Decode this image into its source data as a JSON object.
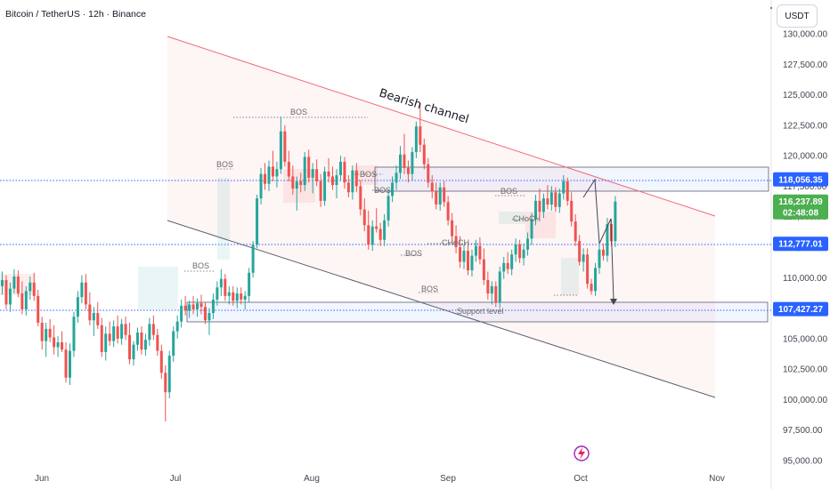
{
  "header": {
    "title": "Bitcoin / TetherUS · 12h · Binance"
  },
  "currency_button": {
    "label": "USDT"
  },
  "colors": {
    "up": "#26a69a",
    "down": "#ef5350",
    "channel_upper": "#f06a76",
    "channel_lower": "#5d606b",
    "line_blue": "#2962ff",
    "tag_blue": "#2962ff",
    "tag_green": "#4caf50"
  },
  "chart_data": {
    "type": "candlestick",
    "title": "Bitcoin / TetherUS · 12h · Binance",
    "y_ticks": [
      "130,000.00",
      "127,500.00",
      "125,000.00",
      "122,500.00",
      "120,000.00",
      "117,500.00",
      "115,000.00",
      "112,500.00",
      "110,000.00",
      "107,500.00",
      "105,000.00",
      "102,500.00",
      "100,000.00",
      "97,500.00",
      "95,000.00"
    ],
    "y_tick_values": [
      130000,
      127500,
      125000,
      122500,
      120000,
      117500,
      115000,
      112500,
      110000,
      107500,
      105000,
      102500,
      100000,
      97500,
      95000
    ],
    "x_ticks": [
      "Jun",
      "Jul",
      "Aug",
      "Sep",
      "Oct",
      "Nov"
    ],
    "ylim": [
      95000,
      131500
    ],
    "price_tags": [
      {
        "label": "118,056.35",
        "value": 118056.35,
        "color": "blue"
      },
      {
        "label": "116,237.89",
        "sublabel": "02:48:08",
        "value": 116237.89,
        "color": "green"
      },
      {
        "label": "112,777.01",
        "value": 112777.01,
        "color": "blue"
      },
      {
        "label": "107,427.27",
        "value": 107427.27,
        "color": "blue"
      }
    ],
    "annotations": [
      {
        "label": "Bearish channel"
      },
      {
        "label": "BOS"
      },
      {
        "label": "BOS"
      },
      {
        "label": "BOS"
      },
      {
        "label": "BOS"
      },
      {
        "label": "BOS"
      },
      {
        "label": "BOS"
      },
      {
        "label": "CHoCH"
      },
      {
        "label": "CHoCH"
      },
      {
        "label": "BOS"
      },
      {
        "label": "Support level"
      }
    ],
    "candles": [
      {
        "o": 109300,
        "h": 110500,
        "l": 108600,
        "c": 109800
      },
      {
        "o": 109800,
        "h": 110200,
        "l": 107400,
        "c": 107800
      },
      {
        "o": 107800,
        "h": 109600,
        "l": 107200,
        "c": 109100
      },
      {
        "o": 109100,
        "h": 110700,
        "l": 108700,
        "c": 110100
      },
      {
        "o": 110100,
        "h": 110600,
        "l": 108400,
        "c": 108700
      },
      {
        "o": 108700,
        "h": 109700,
        "l": 107000,
        "c": 107400
      },
      {
        "o": 107400,
        "h": 109300,
        "l": 106900,
        "c": 108900
      },
      {
        "o": 108900,
        "h": 110100,
        "l": 108200,
        "c": 109600
      },
      {
        "o": 109600,
        "h": 110400,
        "l": 108100,
        "c": 108500
      },
      {
        "o": 108500,
        "h": 109000,
        "l": 106000,
        "c": 106300
      },
      {
        "o": 106300,
        "h": 106800,
        "l": 104100,
        "c": 104800
      },
      {
        "o": 104800,
        "h": 106300,
        "l": 103500,
        "c": 105800
      },
      {
        "o": 105800,
        "h": 106600,
        "l": 104700,
        "c": 105100
      },
      {
        "o": 105100,
        "h": 106100,
        "l": 103700,
        "c": 104300
      },
      {
        "o": 104300,
        "h": 105200,
        "l": 103500,
        "c": 104700
      },
      {
        "o": 104700,
        "h": 105600,
        "l": 103900,
        "c": 104100
      },
      {
        "o": 104100,
        "h": 104700,
        "l": 101400,
        "c": 101800
      },
      {
        "o": 101800,
        "h": 104600,
        "l": 101200,
        "c": 104000
      },
      {
        "o": 104000,
        "h": 107200,
        "l": 103500,
        "c": 106800
      },
      {
        "o": 106800,
        "h": 108900,
        "l": 106300,
        "c": 108400
      },
      {
        "o": 108400,
        "h": 110200,
        "l": 107900,
        "c": 109600
      },
      {
        "o": 109600,
        "h": 110300,
        "l": 107400,
        "c": 107800
      },
      {
        "o": 107800,
        "h": 108800,
        "l": 106100,
        "c": 106500
      },
      {
        "o": 106500,
        "h": 107600,
        "l": 105200,
        "c": 107100
      },
      {
        "o": 107100,
        "h": 108000,
        "l": 105800,
        "c": 106100
      },
      {
        "o": 106100,
        "h": 106700,
        "l": 103500,
        "c": 103900
      },
      {
        "o": 103900,
        "h": 106000,
        "l": 103200,
        "c": 105400
      },
      {
        "o": 105400,
        "h": 106400,
        "l": 104400,
        "c": 104800
      },
      {
        "o": 104800,
        "h": 106500,
        "l": 104300,
        "c": 106000
      },
      {
        "o": 106000,
        "h": 106900,
        "l": 104600,
        "c": 105000
      },
      {
        "o": 105000,
        "h": 106600,
        "l": 104500,
        "c": 106200
      },
      {
        "o": 106200,
        "h": 106800,
        "l": 104900,
        "c": 105300
      },
      {
        "o": 105300,
        "h": 106300,
        "l": 102900,
        "c": 103300
      },
      {
        "o": 103300,
        "h": 104800,
        "l": 102800,
        "c": 104500
      },
      {
        "o": 104500,
        "h": 105900,
        "l": 104000,
        "c": 105500
      },
      {
        "o": 105500,
        "h": 106000,
        "l": 103700,
        "c": 104100
      },
      {
        "o": 104100,
        "h": 105400,
        "l": 103600,
        "c": 104900
      },
      {
        "o": 104900,
        "h": 106700,
        "l": 104400,
        "c": 106200
      },
      {
        "o": 106200,
        "h": 106900,
        "l": 104900,
        "c": 105300
      },
      {
        "o": 105300,
        "h": 105800,
        "l": 103600,
        "c": 104000
      },
      {
        "o": 104000,
        "h": 104500,
        "l": 101700,
        "c": 102200
      },
      {
        "o": 102200,
        "h": 102800,
        "l": 98200,
        "c": 100600
      },
      {
        "o": 100600,
        "h": 104000,
        "l": 100100,
        "c": 103600
      },
      {
        "o": 103600,
        "h": 106000,
        "l": 103100,
        "c": 105600
      },
      {
        "o": 105600,
        "h": 106900,
        "l": 105000,
        "c": 106400
      },
      {
        "o": 106400,
        "h": 108200,
        "l": 105900,
        "c": 107700
      },
      {
        "o": 107700,
        "h": 108500,
        "l": 106900,
        "c": 107300
      },
      {
        "o": 107300,
        "h": 108100,
        "l": 106700,
        "c": 107800
      },
      {
        "o": 107800,
        "h": 108500,
        "l": 107000,
        "c": 107400
      },
      {
        "o": 107400,
        "h": 108300,
        "l": 106800,
        "c": 107900
      },
      {
        "o": 107900,
        "h": 108600,
        "l": 107000,
        "c": 107600
      },
      {
        "o": 107600,
        "h": 108000,
        "l": 106200,
        "c": 106500
      },
      {
        "o": 106500,
        "h": 107500,
        "l": 105300,
        "c": 107100
      },
      {
        "o": 107100,
        "h": 108700,
        "l": 106600,
        "c": 108200
      },
      {
        "o": 108200,
        "h": 109700,
        "l": 107700,
        "c": 109200
      },
      {
        "o": 109200,
        "h": 110700,
        "l": 108500,
        "c": 109900
      },
      {
        "o": 109900,
        "h": 110300,
        "l": 108100,
        "c": 108500
      },
      {
        "o": 108500,
        "h": 109300,
        "l": 107800,
        "c": 108800
      },
      {
        "o": 108800,
        "h": 109300,
        "l": 107700,
        "c": 108100
      },
      {
        "o": 108100,
        "h": 109200,
        "l": 107500,
        "c": 108700
      },
      {
        "o": 108700,
        "h": 109200,
        "l": 107800,
        "c": 108200
      },
      {
        "o": 108200,
        "h": 108900,
        "l": 107400,
        "c": 108500
      },
      {
        "o": 108500,
        "h": 110800,
        "l": 108000,
        "c": 110400
      },
      {
        "o": 110400,
        "h": 113000,
        "l": 110000,
        "c": 112700
      },
      {
        "o": 112700,
        "h": 116800,
        "l": 112400,
        "c": 116500
      },
      {
        "o": 116500,
        "h": 119000,
        "l": 116000,
        "c": 118500
      },
      {
        "o": 118500,
        "h": 119400,
        "l": 117200,
        "c": 117700
      },
      {
        "o": 117700,
        "h": 119600,
        "l": 117100,
        "c": 119100
      },
      {
        "o": 119100,
        "h": 120400,
        "l": 117900,
        "c": 118300
      },
      {
        "o": 118300,
        "h": 119500,
        "l": 117400,
        "c": 118900
      },
      {
        "o": 118900,
        "h": 123200,
        "l": 118500,
        "c": 122000
      },
      {
        "o": 122000,
        "h": 122500,
        "l": 119100,
        "c": 119500
      },
      {
        "o": 119500,
        "h": 120400,
        "l": 117900,
        "c": 118300
      },
      {
        "o": 118300,
        "h": 119200,
        "l": 116800,
        "c": 117300
      },
      {
        "o": 117300,
        "h": 118300,
        "l": 115500,
        "c": 117900
      },
      {
        "o": 117900,
        "h": 118600,
        "l": 117000,
        "c": 117600
      },
      {
        "o": 117600,
        "h": 120300,
        "l": 117100,
        "c": 119900
      },
      {
        "o": 119900,
        "h": 120500,
        "l": 117800,
        "c": 118200
      },
      {
        "o": 118200,
        "h": 119400,
        "l": 116900,
        "c": 118900
      },
      {
        "o": 118900,
        "h": 119700,
        "l": 117500,
        "c": 117900
      },
      {
        "o": 117900,
        "h": 118500,
        "l": 115800,
        "c": 116300
      },
      {
        "o": 116300,
        "h": 119100,
        "l": 115900,
        "c": 118700
      },
      {
        "o": 118700,
        "h": 119800,
        "l": 117800,
        "c": 118300
      },
      {
        "o": 118300,
        "h": 119100,
        "l": 117200,
        "c": 117600
      },
      {
        "o": 117600,
        "h": 118900,
        "l": 116500,
        "c": 118400
      },
      {
        "o": 118400,
        "h": 120000,
        "l": 117900,
        "c": 119500
      },
      {
        "o": 119500,
        "h": 119900,
        "l": 117300,
        "c": 117800
      },
      {
        "o": 117800,
        "h": 118400,
        "l": 116600,
        "c": 117000
      },
      {
        "o": 117000,
        "h": 119200,
        "l": 116400,
        "c": 118800
      },
      {
        "o": 118800,
        "h": 119400,
        "l": 117000,
        "c": 117500
      },
      {
        "o": 117500,
        "h": 118000,
        "l": 115100,
        "c": 115600
      },
      {
        "o": 115600,
        "h": 116500,
        "l": 113800,
        "c": 114300
      },
      {
        "o": 114300,
        "h": 115500,
        "l": 112300,
        "c": 112700
      },
      {
        "o": 112700,
        "h": 114700,
        "l": 112200,
        "c": 114200
      },
      {
        "o": 114200,
        "h": 115700,
        "l": 113700,
        "c": 114000
      },
      {
        "o": 114000,
        "h": 114500,
        "l": 112600,
        "c": 113100
      },
      {
        "o": 113100,
        "h": 115200,
        "l": 112600,
        "c": 114700
      },
      {
        "o": 114700,
        "h": 117200,
        "l": 114200,
        "c": 116700
      },
      {
        "o": 116700,
        "h": 118300,
        "l": 116200,
        "c": 117800
      },
      {
        "o": 117800,
        "h": 119200,
        "l": 117200,
        "c": 118600
      },
      {
        "o": 118600,
        "h": 120800,
        "l": 118100,
        "c": 120100
      },
      {
        "o": 120100,
        "h": 121800,
        "l": 118500,
        "c": 119000
      },
      {
        "o": 119000,
        "h": 119600,
        "l": 117800,
        "c": 118500
      },
      {
        "o": 118500,
        "h": 120700,
        "l": 118000,
        "c": 120300
      },
      {
        "o": 120300,
        "h": 122800,
        "l": 119800,
        "c": 122400
      },
      {
        "o": 122400,
        "h": 124300,
        "l": 120300,
        "c": 120900
      },
      {
        "o": 120900,
        "h": 121400,
        "l": 118900,
        "c": 119300
      },
      {
        "o": 119300,
        "h": 119800,
        "l": 117400,
        "c": 117800
      },
      {
        "o": 117800,
        "h": 118400,
        "l": 116500,
        "c": 117100
      },
      {
        "o": 117100,
        "h": 117800,
        "l": 115600,
        "c": 116000
      },
      {
        "o": 116000,
        "h": 117800,
        "l": 115500,
        "c": 117400
      },
      {
        "o": 117400,
        "h": 117900,
        "l": 115800,
        "c": 116200
      },
      {
        "o": 116200,
        "h": 116700,
        "l": 114300,
        "c": 114700
      },
      {
        "o": 114700,
        "h": 115300,
        "l": 112900,
        "c": 113400
      },
      {
        "o": 113400,
        "h": 114300,
        "l": 112000,
        "c": 112500
      },
      {
        "o": 112500,
        "h": 113400,
        "l": 110800,
        "c": 111300
      },
      {
        "o": 111300,
        "h": 112700,
        "l": 110700,
        "c": 112200
      },
      {
        "o": 112200,
        "h": 112700,
        "l": 110200,
        "c": 110600
      },
      {
        "o": 110600,
        "h": 112300,
        "l": 110100,
        "c": 111800
      },
      {
        "o": 111800,
        "h": 113100,
        "l": 111300,
        "c": 112600
      },
      {
        "o": 112600,
        "h": 113300,
        "l": 111100,
        "c": 111500
      },
      {
        "o": 111500,
        "h": 112400,
        "l": 109400,
        "c": 109800
      },
      {
        "o": 109800,
        "h": 110500,
        "l": 108200,
        "c": 108700
      },
      {
        "o": 108700,
        "h": 109700,
        "l": 107800,
        "c": 109300
      },
      {
        "o": 109300,
        "h": 109700,
        "l": 107600,
        "c": 108000
      },
      {
        "o": 108000,
        "h": 110900,
        "l": 107500,
        "c": 110500
      },
      {
        "o": 110500,
        "h": 111700,
        "l": 109900,
        "c": 111200
      },
      {
        "o": 111200,
        "h": 112100,
        "l": 110300,
        "c": 110700
      },
      {
        "o": 110700,
        "h": 112300,
        "l": 110200,
        "c": 111900
      },
      {
        "o": 111900,
        "h": 113200,
        "l": 111300,
        "c": 112700
      },
      {
        "o": 112700,
        "h": 113100,
        "l": 111200,
        "c": 111600
      },
      {
        "o": 111600,
        "h": 112800,
        "l": 111000,
        "c": 112300
      },
      {
        "o": 112300,
        "h": 113700,
        "l": 111800,
        "c": 113200
      },
      {
        "o": 113200,
        "h": 115300,
        "l": 112700,
        "c": 114800
      },
      {
        "o": 114800,
        "h": 116800,
        "l": 114300,
        "c": 116300
      },
      {
        "o": 116300,
        "h": 117300,
        "l": 115000,
        "c": 115400
      },
      {
        "o": 115400,
        "h": 116900,
        "l": 114900,
        "c": 116500
      },
      {
        "o": 116500,
        "h": 117600,
        "l": 115600,
        "c": 116000
      },
      {
        "o": 116000,
        "h": 117500,
        "l": 115500,
        "c": 117000
      },
      {
        "o": 117000,
        "h": 117400,
        "l": 115400,
        "c": 115800
      },
      {
        "o": 115800,
        "h": 117300,
        "l": 115300,
        "c": 116900
      },
      {
        "o": 116900,
        "h": 118400,
        "l": 116400,
        "c": 117900
      },
      {
        "o": 117900,
        "h": 118200,
        "l": 115900,
        "c": 116300
      },
      {
        "o": 116300,
        "h": 117000,
        "l": 114200,
        "c": 114600
      },
      {
        "o": 114600,
        "h": 115200,
        "l": 112600,
        "c": 113000
      },
      {
        "o": 113000,
        "h": 113500,
        "l": 111000,
        "c": 111300
      },
      {
        "o": 111300,
        "h": 112400,
        "l": 110500,
        "c": 111900
      },
      {
        "o": 111900,
        "h": 112400,
        "l": 109100,
        "c": 109500
      },
      {
        "o": 109500,
        "h": 109900,
        "l": 108600,
        "c": 108900
      },
      {
        "o": 108900,
        "h": 111200,
        "l": 108500,
        "c": 110800
      },
      {
        "o": 110800,
        "h": 112700,
        "l": 110300,
        "c": 112300
      },
      {
        "o": 112300,
        "h": 112800,
        "l": 111400,
        "c": 111800
      },
      {
        "o": 111800,
        "h": 114900,
        "l": 111300,
        "c": 114400
      },
      {
        "o": 114400,
        "h": 114800,
        "l": 112600,
        "c": 113000
      },
      {
        "o": 113000,
        "h": 116700,
        "l": 112500,
        "c": 116238
      }
    ]
  }
}
